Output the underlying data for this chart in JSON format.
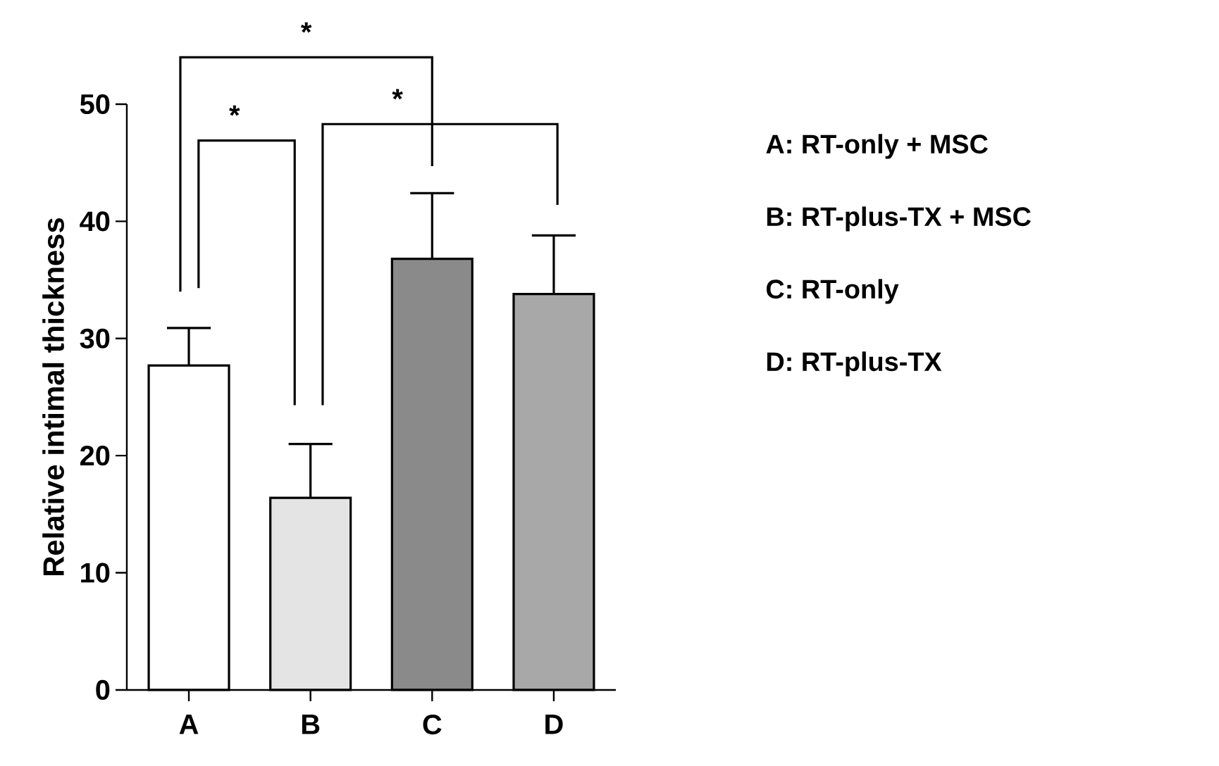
{
  "chart_data": {
    "type": "bar",
    "ylabel": "Relative intimal thickness",
    "categories": [
      "A",
      "B",
      "C",
      "D"
    ],
    "values": [
      27.7,
      16.4,
      36.8,
      33.8
    ],
    "errors": [
      [
        27.7,
        30.9
      ],
      [
        16.4,
        21.0
      ],
      [
        36.8,
        42.4
      ],
      [
        33.8,
        38.8
      ]
    ],
    "colors": [
      "#ffffff",
      "#e4e4e4",
      "#8a8a8a",
      "#a8a8a8"
    ],
    "ylim": [
      0,
      50
    ],
    "yticks": [
      0,
      10,
      20,
      30,
      40,
      50
    ],
    "annotations": [
      "A: RT-only + MSC",
      "B: RT-plus-TX + MSC",
      "C: RT-only",
      "D: RT-plus-TX",
      "*",
      "*",
      "*"
    ]
  }
}
